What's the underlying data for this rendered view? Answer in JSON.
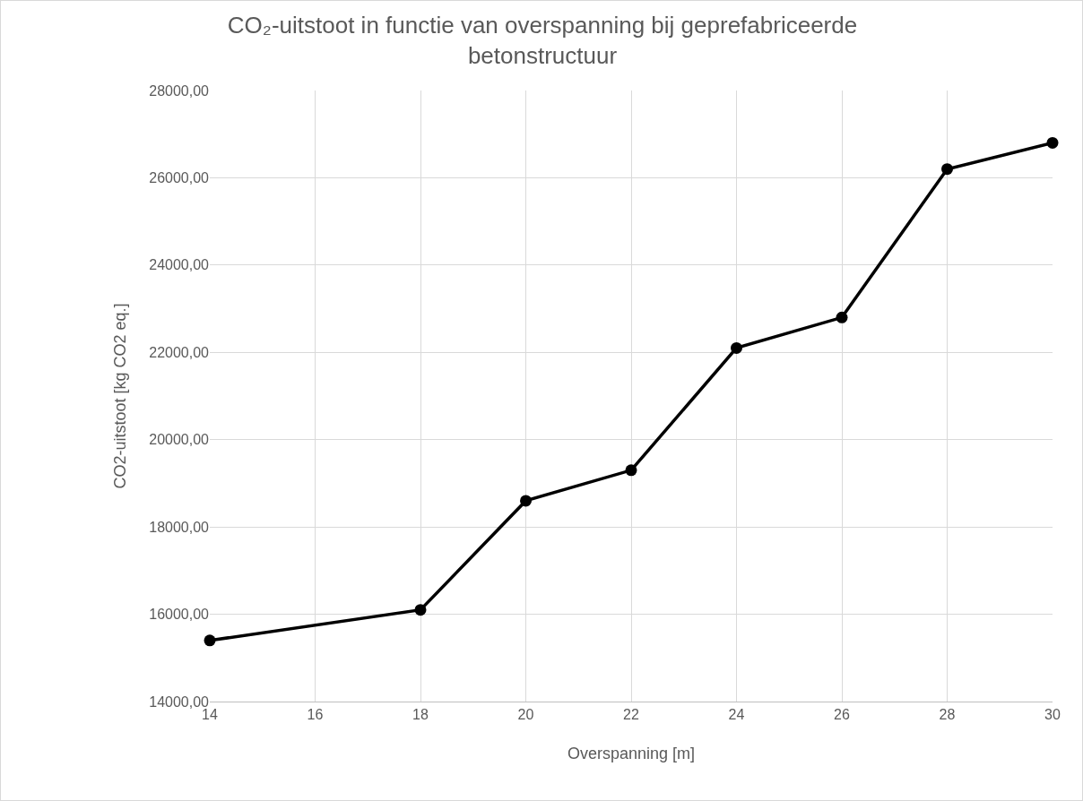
{
  "chart_data": {
    "type": "line",
    "title": "CO₂-uitstoot in functie van overspanning bij geprefabriceerde betonstructuur",
    "xlabel": "Overspanning [m]",
    "ylabel": "CO2-uitstoot [kg CO2 eq.]",
    "x": [
      14,
      18,
      20,
      22,
      24,
      26,
      28,
      30
    ],
    "series": [
      {
        "color": "#000000",
        "values": [
          15400,
          16100,
          18600,
          19300,
          22100,
          22800,
          26200,
          26800
        ]
      }
    ],
    "xlim": [
      14,
      30
    ],
    "xticks": [
      14,
      16,
      18,
      20,
      22,
      24,
      26,
      28,
      30
    ],
    "ylim": [
      14000,
      28000
    ],
    "yticks": [
      {
        "value": 14000,
        "label": "14000,00"
      },
      {
        "value": 16000,
        "label": "16000,00"
      },
      {
        "value": 18000,
        "label": "18000,00"
      },
      {
        "value": 20000,
        "label": "20000,00"
      },
      {
        "value": 22000,
        "label": "22000,00"
      },
      {
        "value": 24000,
        "label": "24000,00"
      },
      {
        "value": 26000,
        "label": "26000,00"
      },
      {
        "value": 28000,
        "label": "28000,00"
      }
    ],
    "grid": true,
    "marker": "circle",
    "line_style": "solid"
  }
}
